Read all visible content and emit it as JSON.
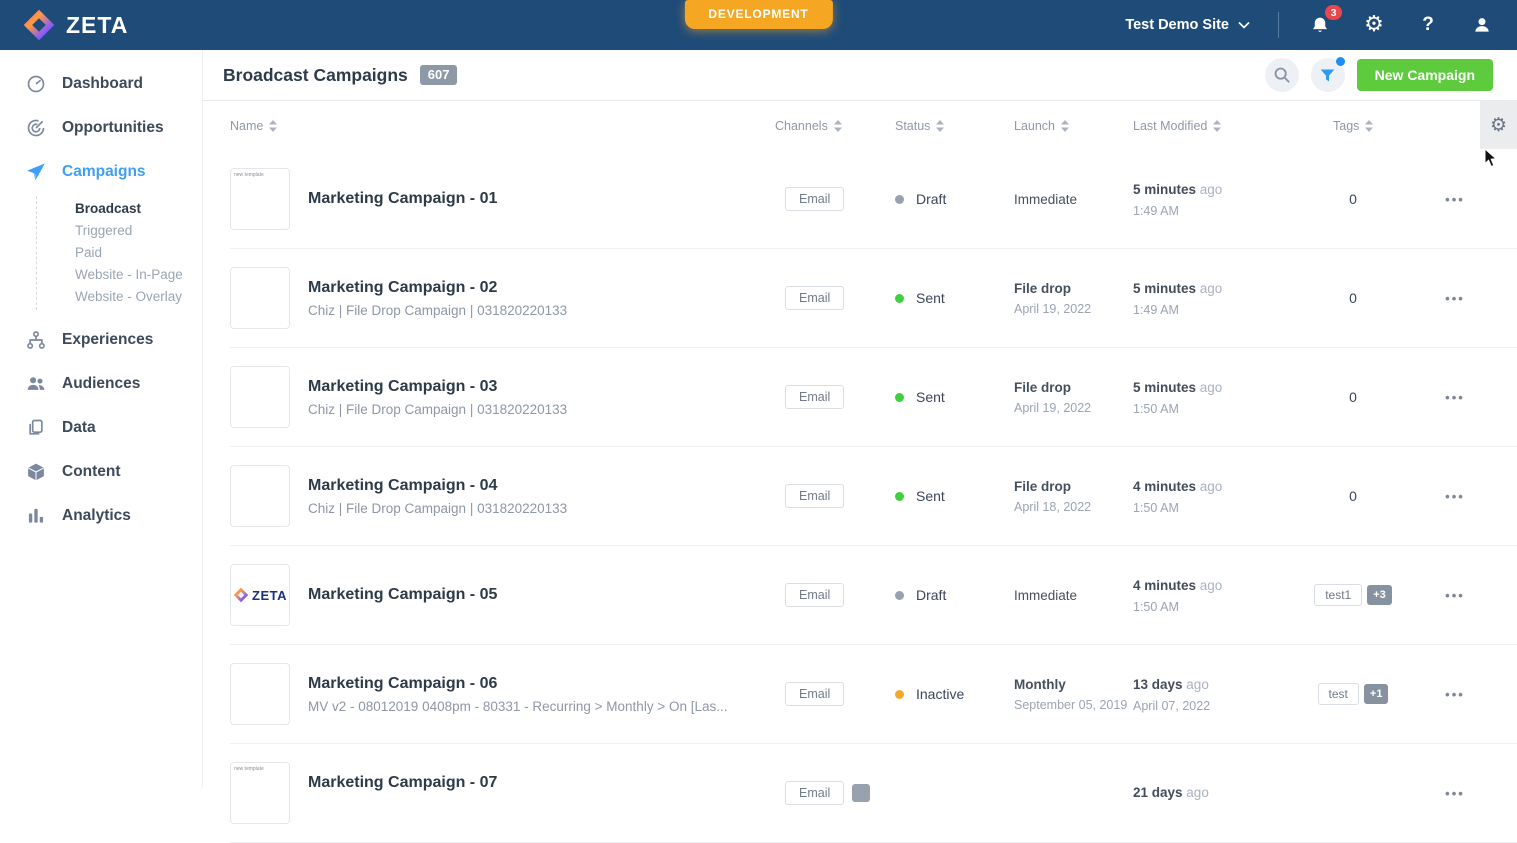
{
  "topbar": {
    "brand": "ZETA",
    "environment_badge": "DEVELOPMENT",
    "site_selector": "Test Demo Site",
    "notification_count": "3"
  },
  "sidebar": {
    "items": [
      {
        "label": "Dashboard",
        "icon": "dashboard-gauge-icon"
      },
      {
        "label": "Opportunities",
        "icon": "opportunities-target-icon"
      },
      {
        "label": "Campaigns",
        "icon": "campaigns-paper-plane-icon",
        "active": true,
        "children": [
          {
            "label": "Broadcast",
            "active": true
          },
          {
            "label": "Triggered"
          },
          {
            "label": "Paid"
          },
          {
            "label": "Website - In-Page"
          },
          {
            "label": "Website - Overlay"
          }
        ]
      },
      {
        "label": "Experiences",
        "icon": "experiences-hierarchy-icon"
      },
      {
        "label": "Audiences",
        "icon": "audiences-people-icon"
      },
      {
        "label": "Data",
        "icon": "data-documents-icon"
      },
      {
        "label": "Content",
        "icon": "content-cube-icon"
      },
      {
        "label": "Analytics",
        "icon": "analytics-bars-icon"
      }
    ]
  },
  "page": {
    "title": "Broadcast Campaigns",
    "count": "607",
    "new_campaign_label": "New Campaign"
  },
  "table": {
    "columns": [
      "Name",
      "Channels",
      "Status",
      "Launch",
      "Last Modified",
      "Tags"
    ],
    "rows": [
      {
        "name": "Marketing Campaign - 01",
        "subtitle": null,
        "thumb": "label",
        "thumb_label": "new template",
        "channel": "Email",
        "channel_more": null,
        "status": "Draft",
        "status_dot": "#98a1af",
        "launch": "Immediate",
        "launch_sub": null,
        "modified": "5 minutes",
        "ago": "ago",
        "time": "1:49 AM",
        "tags_count": "0",
        "tag": null,
        "tag_more": null
      },
      {
        "name": "Marketing Campaign - 02",
        "subtitle": "Chiz | File Drop Campaign | 031820220133",
        "thumb": "blank",
        "channel": "Email",
        "channel_more": null,
        "status": "Sent",
        "status_dot": "#3ed03e",
        "launch": "File drop",
        "launch_sub": "April 19, 2022",
        "modified": "5 minutes",
        "ago": "ago",
        "time": "1:49 AM",
        "tags_count": "0",
        "tag": null,
        "tag_more": null
      },
      {
        "name": "Marketing Campaign - 03",
        "subtitle": "Chiz | File Drop Campaign | 031820220133",
        "thumb": "blank",
        "channel": "Email",
        "channel_more": null,
        "status": "Sent",
        "status_dot": "#3ed03e",
        "launch": "File drop",
        "launch_sub": "April 19, 2022",
        "modified": "5 minutes",
        "ago": "ago",
        "time": "1:50 AM",
        "tags_count": "0",
        "tag": null,
        "tag_more": null
      },
      {
        "name": "Marketing Campaign - 04",
        "subtitle": "Chiz | File Drop Campaign | 031820220133",
        "thumb": "blank",
        "channel": "Email",
        "channel_more": null,
        "status": "Sent",
        "status_dot": "#3ed03e",
        "launch": "File drop",
        "launch_sub": "April 18, 2022",
        "modified": "4 minutes",
        "ago": "ago",
        "time": "1:50 AM",
        "tags_count": "0",
        "tag": null,
        "tag_more": null
      },
      {
        "name": "Marketing Campaign - 05",
        "subtitle": null,
        "thumb": "zeta",
        "thumb_text": "ZETA",
        "channel": "Email",
        "channel_more": null,
        "status": "Draft",
        "status_dot": "#98a1af",
        "launch": "Immediate",
        "launch_sub": null,
        "modified": "4 minutes",
        "ago": "ago",
        "time": "1:50 AM",
        "tags_count": null,
        "tag": "test1",
        "tag_more": "+3"
      },
      {
        "name": "Marketing Campaign - 06",
        "subtitle": "MV v2 - 08012019 0408pm - 80331 - Recurring > Monthly > On [Las...",
        "thumb": "blank",
        "channel": "Email",
        "channel_more": null,
        "status": "Inactive",
        "status_dot": "#f2a92e",
        "launch": "Monthly",
        "launch_sub": "September 05, 2019",
        "modified": "13 days",
        "ago": "ago",
        "time": "April 07, 2022",
        "tags_count": null,
        "tag": "test",
        "tag_more": "+1"
      },
      {
        "name": "Marketing Campaign - 07",
        "subtitle": "",
        "thumb": "label",
        "thumb_label": "new template",
        "channel": "Email",
        "channel_more": "",
        "status": null,
        "status_dot": null,
        "launch": null,
        "launch_sub": null,
        "modified": "21 days",
        "ago": "ago",
        "time": null,
        "tags_count": null,
        "tag": null,
        "tag_more": null
      }
    ]
  },
  "colors": {
    "topbar": "#1f4b79",
    "accent_blue": "#3f9ff6",
    "button_green": "#5ecb3e",
    "environment_orange": "#f5a623",
    "notification_red": "#e6484d",
    "status_sent": "#3ed03e",
    "status_draft": "#98a1af",
    "status_inactive": "#f2a92e"
  }
}
